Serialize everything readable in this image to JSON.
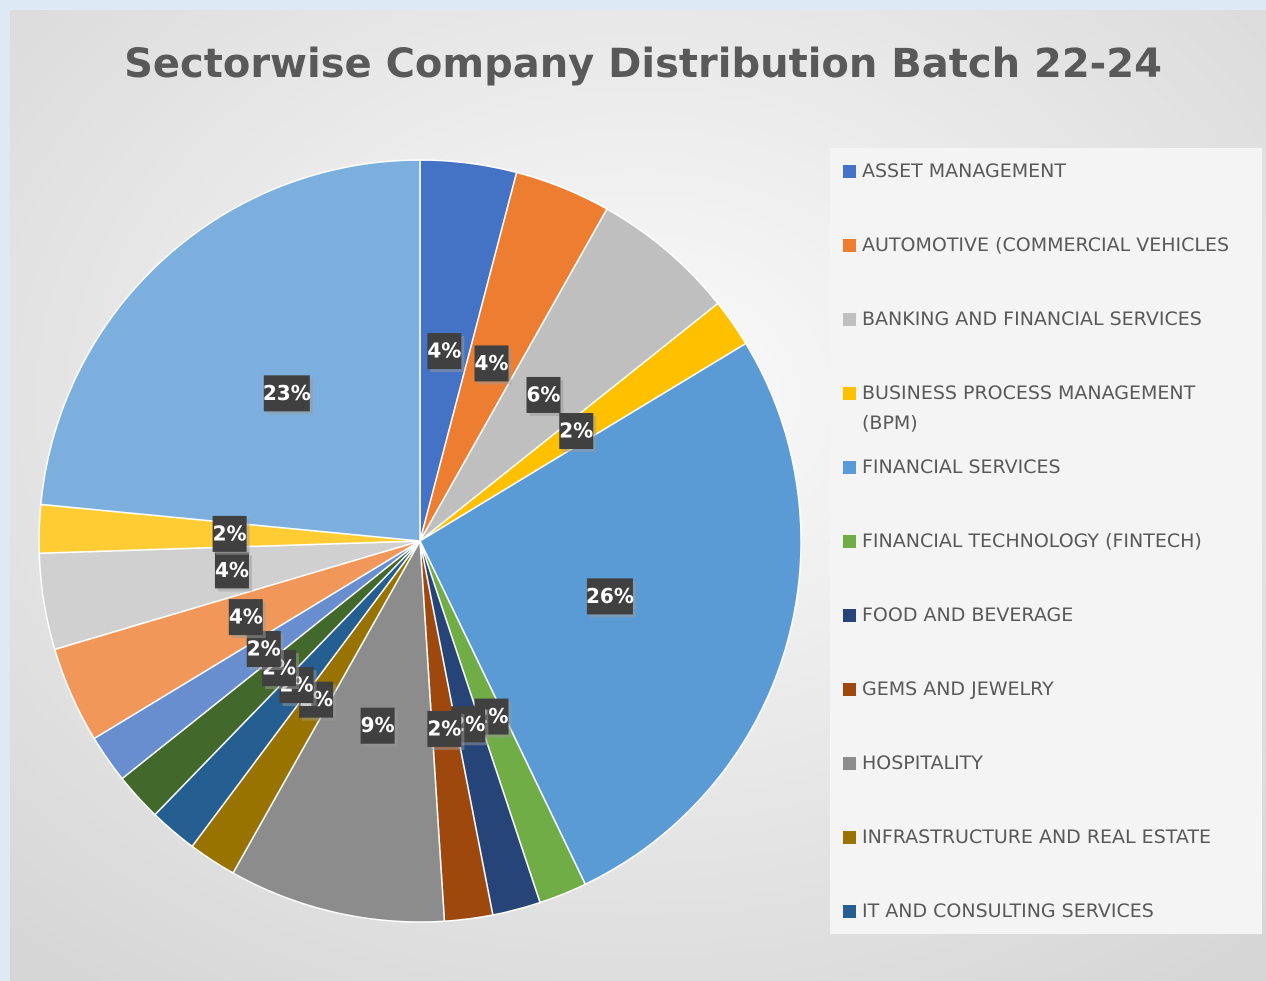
{
  "chart_data": {
    "type": "pie",
    "title": "Sectorwise Company Distribution Batch 22-24",
    "categories": [
      "ASSET MANAGEMENT",
      "AUTOMOTIVE (COMMERCIAL VEHICLES",
      "BANKING AND FINANCIAL SERVICES",
      "BUSINESS PROCESS MANAGEMENT (BPM)",
      "FINANCIAL SERVICES",
      "FINANCIAL TECHNOLOGY (FINTECH)",
      "FOOD AND BEVERAGE",
      "GEMS AND JEWELRY",
      "HOSPITALITY",
      "INFRASTRUCTURE AND REAL ESTATE",
      "IT AND CONSULTING SERVICES",
      null,
      null,
      null,
      null,
      null,
      null
    ],
    "values": [
      4,
      4,
      6,
      2,
      26,
      2,
      2,
      2,
      9,
      2,
      2,
      2,
      2,
      4,
      4,
      2,
      23
    ],
    "value_labels": [
      "4%",
      "4%",
      "6%",
      "2%",
      "26%",
      "2%",
      "2%",
      "2%",
      "9%",
      "2%",
      "2%",
      "2%",
      "2%",
      "4%",
      "4%",
      "2%",
      "23%"
    ],
    "colors": [
      "#4472c4",
      "#ed7d31",
      "#bfbfbf",
      "#ffc000",
      "#5b9bd5",
      "#70ad47",
      "#264478",
      "#9e480e",
      "#8c8c8c",
      "#997300",
      "#255e91",
      "#43682b",
      "#698ed0",
      "#f1975a",
      "#d0d0d0",
      "#ffcd33",
      "#7cafdd"
    ],
    "legend": "right"
  }
}
